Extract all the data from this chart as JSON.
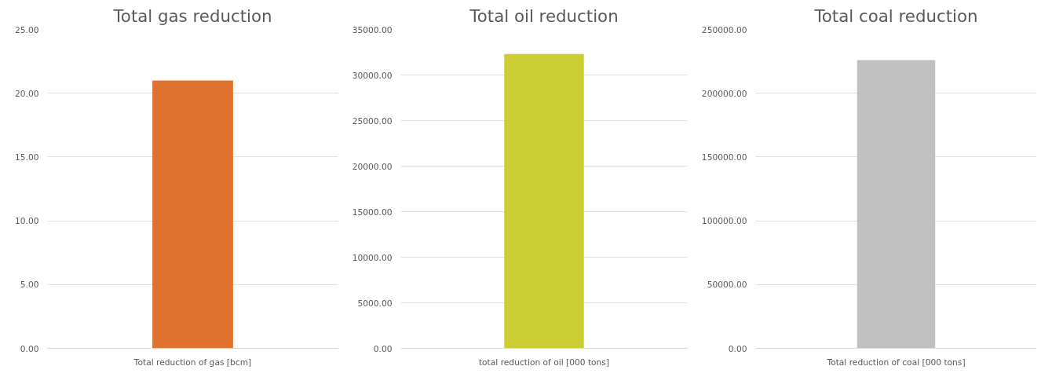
{
  "chart_data": [
    {
      "type": "bar",
      "title": "Total gas reduction",
      "categories": [
        "Total reduction of gas [bcm]"
      ],
      "values": [
        21.0
      ],
      "color": "#e07230",
      "ylim": [
        0,
        25
      ],
      "yticks": [
        {
          "value": 0,
          "label": "0.00"
        },
        {
          "value": 5,
          "label": "5.00"
        },
        {
          "value": 10,
          "label": "10.00"
        },
        {
          "value": 15,
          "label": "15.00"
        },
        {
          "value": 20,
          "label": "20.00"
        },
        {
          "value": 25,
          "label": "25.00"
        }
      ],
      "grid": "y"
    },
    {
      "type": "bar",
      "title": "Total oil reduction",
      "categories": [
        "total reduction of oil [000 tons]"
      ],
      "values": [
        32300
      ],
      "color": "#cccc33",
      "ylim": [
        0,
        35000
      ],
      "yticks": [
        {
          "value": 0,
          "label": "0.00"
        },
        {
          "value": 5000,
          "label": "5000.00"
        },
        {
          "value": 10000,
          "label": "10000.00"
        },
        {
          "value": 15000,
          "label": "15000.00"
        },
        {
          "value": 20000,
          "label": "20000.00"
        },
        {
          "value": 25000,
          "label": "25000.00"
        },
        {
          "value": 30000,
          "label": "30000.00"
        },
        {
          "value": 35000,
          "label": "35000.00"
        }
      ],
      "grid": "y"
    },
    {
      "type": "bar",
      "title": "Total coal reduction",
      "categories": [
        "Total reduction of coal [000 tons]"
      ],
      "values": [
        226000
      ],
      "color": "#c0c0c0",
      "ylim": [
        0,
        250000
      ],
      "yticks": [
        {
          "value": 0,
          "label": "0.00"
        },
        {
          "value": 50000,
          "label": "50000.00"
        },
        {
          "value": 100000,
          "label": "100000.00"
        },
        {
          "value": 150000,
          "label": "150000.00"
        },
        {
          "value": 200000,
          "label": "200000.00"
        },
        {
          "value": 250000,
          "label": "250000.00"
        }
      ],
      "grid": "y"
    }
  ]
}
